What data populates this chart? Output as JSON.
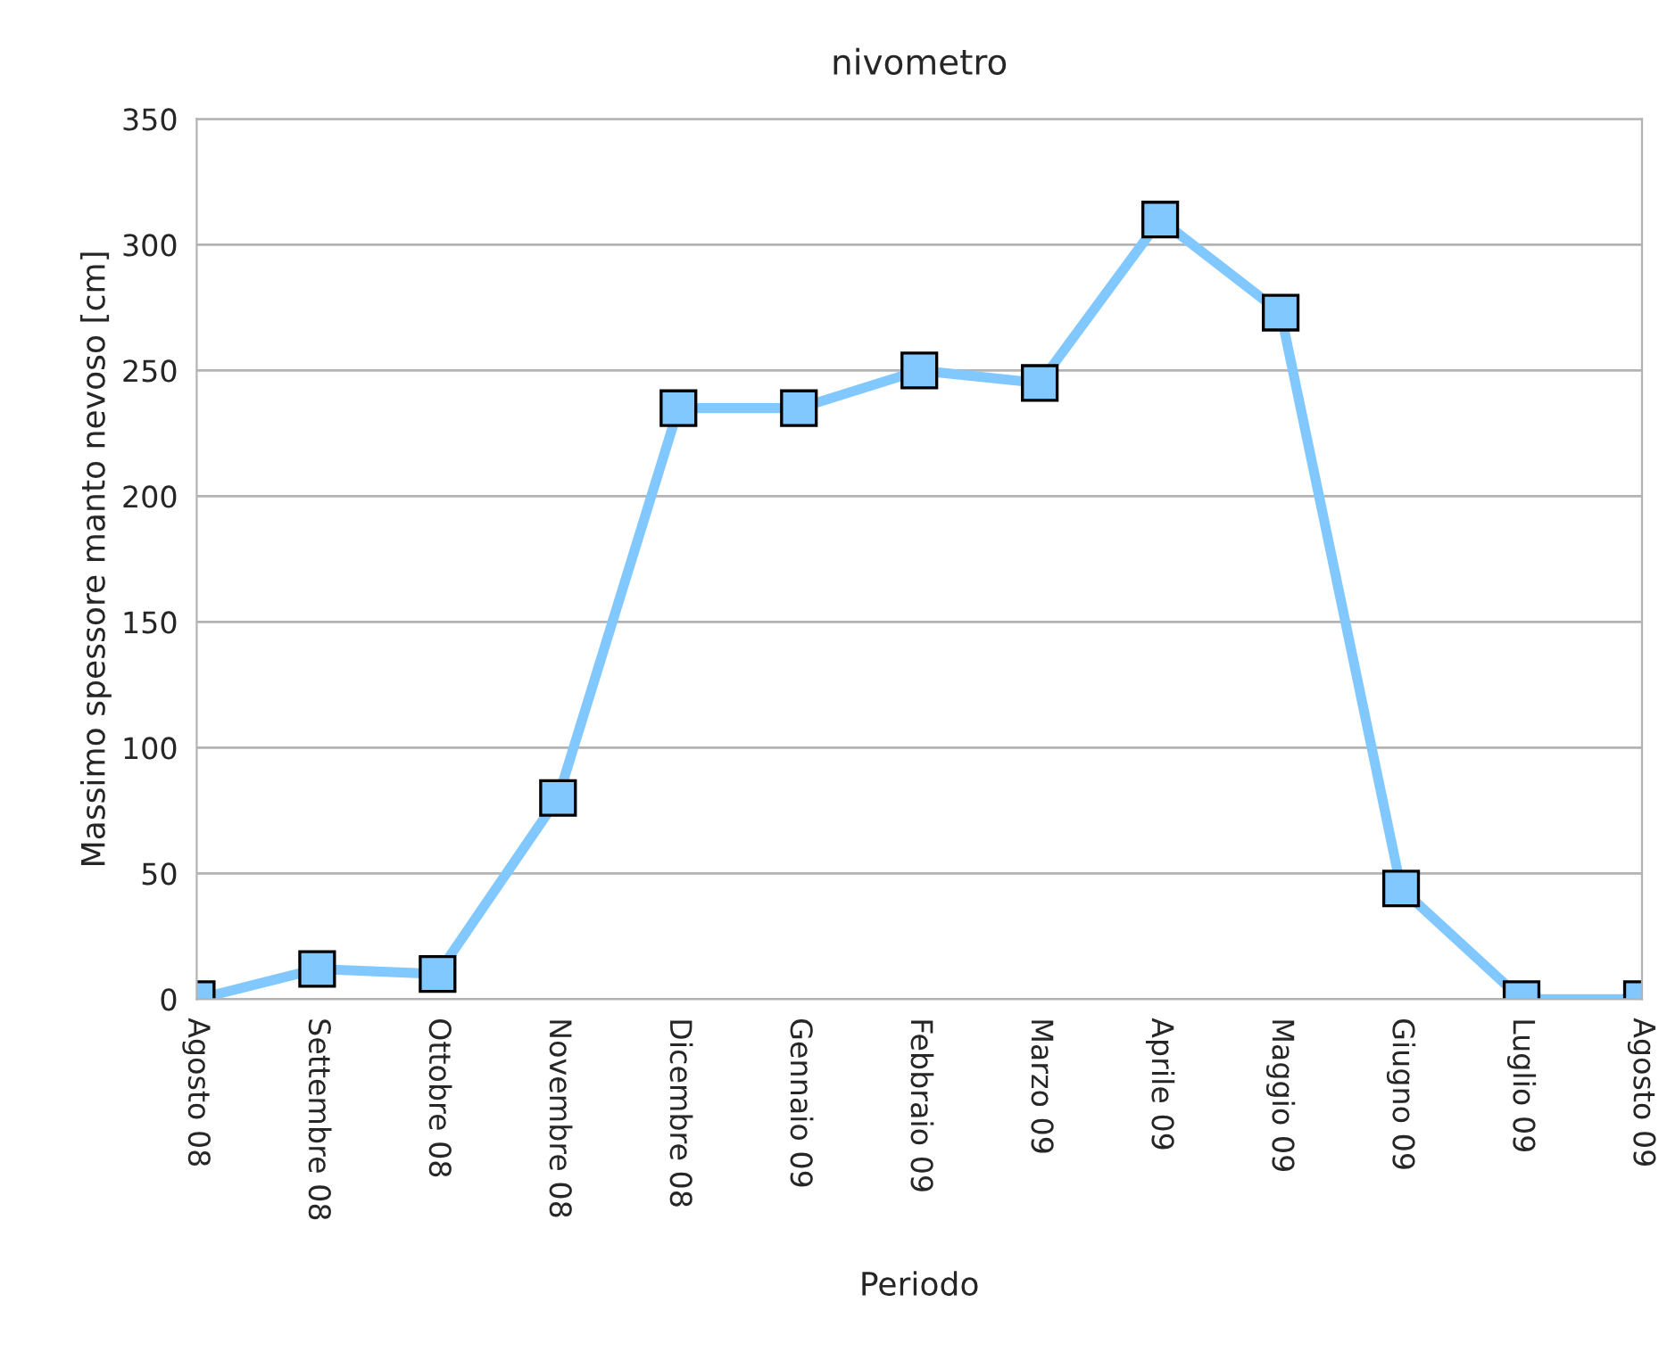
{
  "chart_data": {
    "type": "line",
    "title": "nivometro",
    "xlabel": "Periodo",
    "ylabel": "Massimo spessore manto nevoso [cm]",
    "categories": [
      "Agosto 08",
      "Settembre 08",
      "Ottobre 08",
      "Novembre 08",
      "Dicembre 08",
      "Gennaio 09",
      "Febbraio 09",
      "Marzo 09",
      "Aprile 09",
      "Maggio 09",
      "Giugno 09",
      "Luglio 09",
      "Agosto 09"
    ],
    "series": [
      {
        "color": "#80c8ff",
        "values": [
          0,
          12,
          10,
          80,
          235,
          235,
          250,
          245,
          310,
          273,
          44,
          0,
          0
        ]
      }
    ],
    "ylim": [
      0,
      350
    ],
    "yticks": [
      0,
      50,
      100,
      150,
      200,
      250,
      300,
      350
    ],
    "grid": "y",
    "marker": "square",
    "line_style": "solid",
    "legend": false
  }
}
